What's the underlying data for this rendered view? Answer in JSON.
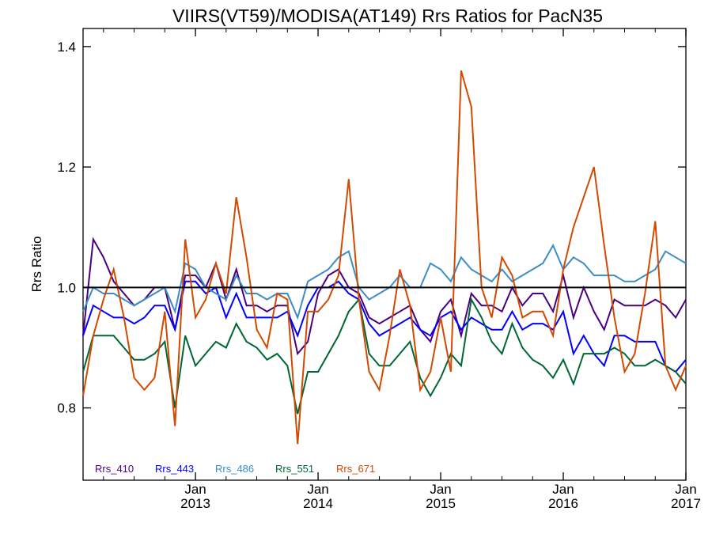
{
  "chart_data": {
    "type": "line",
    "title": "VIIRS(VT59)/MODISA(AT149)  Rrs Ratios for PacN35",
    "ylabel": "Rrs Ratio",
    "xlabel": "",
    "xlim": [
      "2012-02",
      "2017-01"
    ],
    "ylim": [
      0.68,
      1.43
    ],
    "y_ticks": [
      "0.8",
      "1.0",
      "1.2",
      "1.4"
    ],
    "x_ticks": [
      {
        "month": "Jan",
        "year": "2013"
      },
      {
        "month": "Jan",
        "year": "2014"
      },
      {
        "month": "Jan",
        "year": "2015"
      },
      {
        "month": "Jan",
        "year": "2016"
      },
      {
        "month": "Jan",
        "year": "2017"
      }
    ],
    "reference_line": 1.0,
    "grid": false,
    "legend_position": "bottom-left",
    "x": [
      "2012-02",
      "2012-03",
      "2012-04",
      "2012-05",
      "2012-06",
      "2012-07",
      "2012-08",
      "2012-09",
      "2012-10",
      "2012-11",
      "2012-12",
      "2013-01",
      "2013-02",
      "2013-03",
      "2013-04",
      "2013-05",
      "2013-06",
      "2013-07",
      "2013-08",
      "2013-09",
      "2013-10",
      "2013-11",
      "2013-12",
      "2014-01",
      "2014-02",
      "2014-03",
      "2014-04",
      "2014-05",
      "2014-06",
      "2014-07",
      "2014-08",
      "2014-09",
      "2014-10",
      "2014-11",
      "2014-12",
      "2015-01",
      "2015-02",
      "2015-03",
      "2015-04",
      "2015-05",
      "2015-06",
      "2015-07",
      "2015-08",
      "2015-09",
      "2015-10",
      "2015-11",
      "2015-12",
      "2016-01",
      "2016-02",
      "2016-03",
      "2016-04",
      "2016-05",
      "2016-06",
      "2016-07",
      "2016-08",
      "2016-09",
      "2016-10",
      "2016-11",
      "2016-12",
      "2017-01"
    ],
    "series": [
      {
        "name": "Rrs_410",
        "color": "#4b0082",
        "values": [
          0.92,
          1.08,
          1.05,
          1.01,
          0.99,
          0.97,
          0.98,
          1.0,
          1.0,
          0.93,
          1.02,
          1.02,
          1.0,
          1.04,
          0.98,
          1.03,
          0.97,
          0.97,
          0.96,
          0.97,
          0.97,
          0.89,
          0.91,
          0.99,
          1.02,
          1.03,
          1.0,
          0.99,
          0.95,
          0.94,
          0.95,
          0.96,
          0.97,
          0.93,
          0.91,
          0.96,
          0.98,
          0.92,
          0.99,
          0.97,
          0.97,
          0.96,
          1.0,
          0.97,
          0.99,
          0.99,
          0.96,
          1.02,
          0.95,
          1.0,
          0.96,
          0.93,
          0.98,
          0.97,
          0.97,
          0.97,
          0.98,
          0.97,
          0.95,
          0.98
        ]
      },
      {
        "name": "Rrs_443",
        "color": "#0000ff",
        "values": [
          0.92,
          0.97,
          0.96,
          0.95,
          0.95,
          0.94,
          0.95,
          0.97,
          0.97,
          0.93,
          1.01,
          1.01,
          0.99,
          1.0,
          0.95,
          0.99,
          0.95,
          0.95,
          0.95,
          0.95,
          0.96,
          0.92,
          0.97,
          1.0,
          1.0,
          1.01,
          0.99,
          0.98,
          0.94,
          0.92,
          0.93,
          0.94,
          0.95,
          0.93,
          0.92,
          0.95,
          0.96,
          0.93,
          0.95,
          0.94,
          0.93,
          0.93,
          0.96,
          0.93,
          0.94,
          0.94,
          0.93,
          0.96,
          0.89,
          0.92,
          0.89,
          0.87,
          0.92,
          0.92,
          0.91,
          0.91,
          0.91,
          0.87,
          0.86,
          0.88
        ]
      },
      {
        "name": "Rrs_486",
        "color": "#3c8dc3",
        "values": [
          0.96,
          1.0,
          0.99,
          0.99,
          0.98,
          0.97,
          0.98,
          0.99,
          1.0,
          0.96,
          1.04,
          1.03,
          1.0,
          0.99,
          0.98,
          1.02,
          0.99,
          0.99,
          0.98,
          0.99,
          0.99,
          0.95,
          1.01,
          1.02,
          1.03,
          1.05,
          1.06,
          1.0,
          0.98,
          0.99,
          1.0,
          1.02,
          1.0,
          1.0,
          1.04,
          1.03,
          1.01,
          1.05,
          1.03,
          1.02,
          1.01,
          1.03,
          1.01,
          1.02,
          1.03,
          1.04,
          1.07,
          1.03,
          1.05,
          1.04,
          1.02,
          1.02,
          1.02,
          1.01,
          1.01,
          1.02,
          1.03,
          1.06,
          1.05,
          1.04
        ]
      },
      {
        "name": "Rrs_551",
        "color": "#006633",
        "values": [
          0.86,
          0.92,
          0.92,
          0.92,
          0.9,
          0.88,
          0.88,
          0.89,
          0.91,
          0.8,
          0.92,
          0.87,
          0.89,
          0.91,
          0.9,
          0.94,
          0.91,
          0.9,
          0.88,
          0.89,
          0.87,
          0.79,
          0.86,
          0.86,
          0.89,
          0.92,
          0.96,
          0.98,
          0.89,
          0.87,
          0.87,
          0.89,
          0.91,
          0.85,
          0.82,
          0.85,
          0.89,
          0.87,
          0.98,
          0.95,
          0.91,
          0.89,
          0.94,
          0.9,
          0.88,
          0.87,
          0.85,
          0.88,
          0.84,
          0.89,
          0.89,
          0.89,
          0.9,
          0.89,
          0.87,
          0.87,
          0.88,
          0.87,
          0.86,
          0.84
        ]
      },
      {
        "name": "Rrs_671",
        "color": "#d04a02",
        "values": [
          0.82,
          0.92,
          0.98,
          1.03,
          0.95,
          0.85,
          0.83,
          0.85,
          0.96,
          0.77,
          1.08,
          0.95,
          0.98,
          1.04,
          0.99,
          1.15,
          1.05,
          0.93,
          0.9,
          0.99,
          0.98,
          0.74,
          0.96,
          0.96,
          0.98,
          1.02,
          1.18,
          0.98,
          0.86,
          0.83,
          0.92,
          1.03,
          0.97,
          0.83,
          0.86,
          0.95,
          0.86,
          1.36,
          1.3,
          1.0,
          0.95,
          1.05,
          1.02,
          0.95,
          0.96,
          0.96,
          0.92,
          1.03,
          1.1,
          1.15,
          1.2,
          1.07,
          0.95,
          0.86,
          0.89,
          0.99,
          1.11,
          0.87,
          0.83,
          0.87
        ]
      }
    ]
  }
}
